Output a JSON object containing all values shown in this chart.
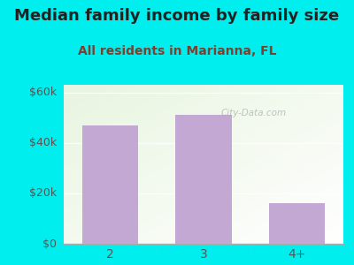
{
  "title": "Median family income by family size",
  "subtitle": "All residents in Marianna, FL",
  "categories": [
    "2",
    "3",
    "4+"
  ],
  "values": [
    47000,
    51000,
    16000
  ],
  "bar_color": "#c4a8d4",
  "background_color": "#00eeee",
  "title_color": "#222222",
  "subtitle_color": "#7a4030",
  "tick_color": "#555555",
  "ylim": [
    0,
    63000
  ],
  "yticks": [
    0,
    20000,
    40000,
    60000
  ],
  "ytick_labels": [
    "$0",
    "$20k",
    "$40k",
    "$60k"
  ],
  "watermark": "City-Data.com",
  "title_fontsize": 13,
  "subtitle_fontsize": 10,
  "tick_fontsize": 9,
  "bar_width": 0.6
}
